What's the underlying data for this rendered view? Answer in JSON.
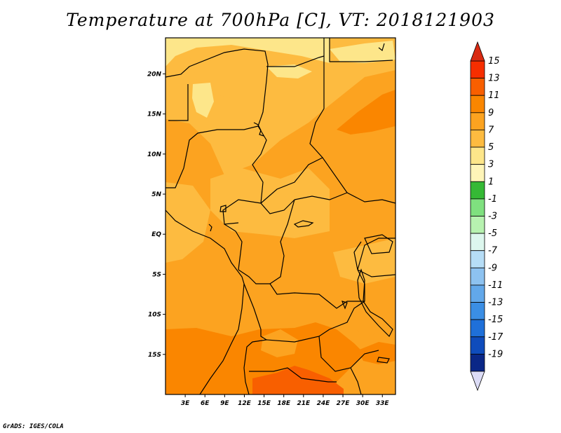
{
  "title": "Temperature at 700hPa [C], VT: 2018121903",
  "footer": "GrADS: IGES/COLA",
  "chart_data": {
    "type": "heatmap",
    "title": "Temperature at 700hPa [C], VT: 2018121903",
    "variable": "Temperature at 700hPa",
    "units": "C",
    "valid_time": "2018121903",
    "lon_range": [
      0,
      35
    ],
    "lat_range": [
      -20,
      24.5
    ],
    "x_ticks": [
      "3E",
      "6E",
      "9E",
      "12E",
      "15E",
      "18E",
      "21E",
      "24E",
      "27E",
      "30E",
      "33E"
    ],
    "x_tick_values": [
      3,
      6,
      9,
      12,
      15,
      18,
      21,
      24,
      27,
      30,
      33
    ],
    "y_ticks": [
      "20N",
      "15N",
      "10N",
      "5N",
      "EQ",
      "5S",
      "10S",
      "15S"
    ],
    "y_tick_values": [
      20,
      15,
      10,
      5,
      0,
      -5,
      -10,
      -15
    ],
    "colorbar": {
      "labels": [
        "15",
        "13",
        "11",
        "9",
        "7",
        "5",
        "3",
        "1",
        "-1",
        "-3",
        "-5",
        "-7",
        "-9",
        "-11",
        "-13",
        "-15",
        "-17",
        "-19"
      ],
      "levels": [
        15,
        13,
        11,
        9,
        7,
        5,
        3,
        1,
        -1,
        -3,
        -5,
        -7,
        -9,
        -11,
        -13,
        -15,
        -17,
        -19
      ],
      "colors": [
        "#f62e00",
        "#f85f00",
        "#fa8600",
        "#fca320",
        "#fdbb40",
        "#fde68a",
        "#fff5b8",
        "#35b935",
        "#7fe07f",
        "#b7f2b0",
        "#ddf7ee",
        "#b6ddf6",
        "#8dc2f0",
        "#62a8ea",
        "#3b8ee4",
        "#1f70d9",
        "#0f4cbc",
        "#0a2787"
      ],
      "over_color": "#d92a12",
      "under_color": "#dcdcf6"
    }
  }
}
